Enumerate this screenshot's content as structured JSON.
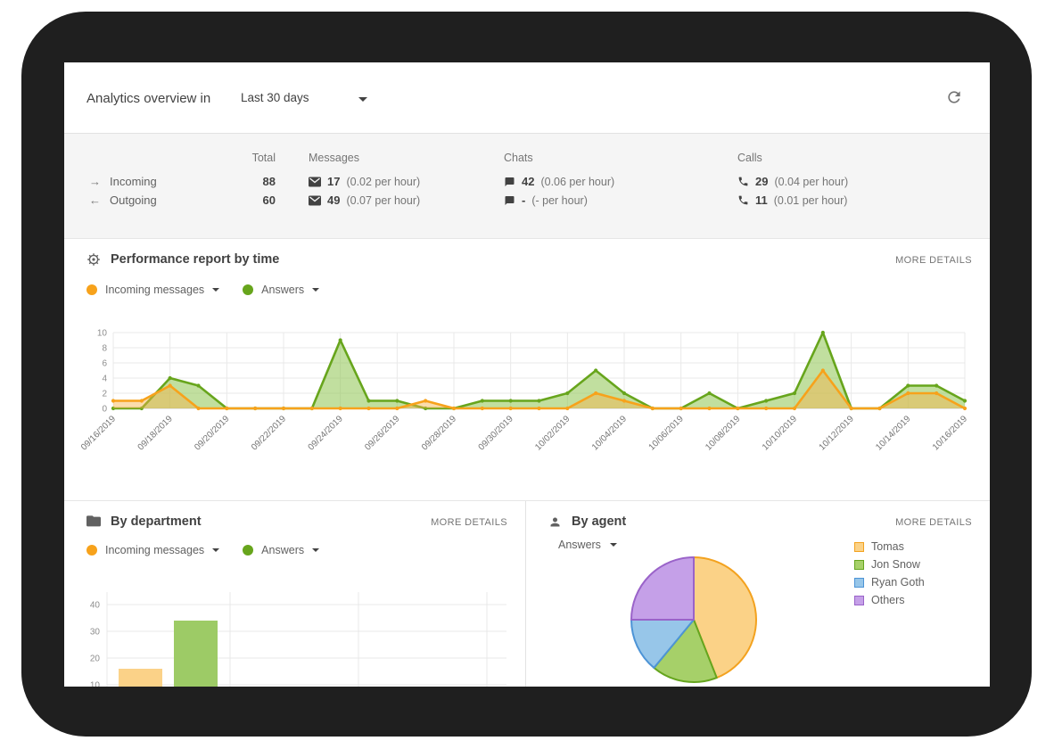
{
  "header": {
    "title": "Analytics overview in",
    "period_selector": {
      "value": "Last 30 days"
    },
    "refresh_icon": "refresh-icon"
  },
  "stats": {
    "columns": {
      "total": "Total",
      "messages": "Messages",
      "chats": "Chats",
      "calls": "Calls"
    },
    "rows": [
      {
        "arrow": "→",
        "label": "Incoming",
        "total": "88",
        "messages": {
          "icon": "envelope-icon",
          "value": "17",
          "rate": "(0.02 per hour)"
        },
        "chats": {
          "icon": "chat-bubble-icon",
          "value": "42",
          "rate": "(0.06 per hour)"
        },
        "calls": {
          "icon": "phone-icon",
          "value": "29",
          "rate": "(0.04 per hour)"
        }
      },
      {
        "arrow": "←",
        "label": "Outgoing",
        "total": "60",
        "messages": {
          "icon": "envelope-icon",
          "value": "49",
          "rate": "(0.07 per hour)"
        },
        "chats": {
          "icon": "chat-bubble-icon",
          "value": "-",
          "rate": "(- per hour)"
        },
        "calls": {
          "icon": "phone-icon",
          "value": "11",
          "rate": "(0.01 per hour)"
        }
      }
    ]
  },
  "performance": {
    "icon": "gear-icon",
    "title": "Performance report by time",
    "more_details": "MORE DETAILS",
    "legend": [
      {
        "label": "Incoming messages",
        "color": "#F7A21B"
      },
      {
        "label": "Answers",
        "color": "#67A51C"
      }
    ]
  },
  "by_department": {
    "icon": "folder-icon",
    "title": "By department",
    "more_details": "MORE DETAILS",
    "legend": [
      {
        "label": "Incoming messages",
        "color": "#F7A21B"
      },
      {
        "label": "Answers",
        "color": "#67A51C"
      }
    ]
  },
  "by_agent": {
    "icon": "person-icon",
    "title": "By agent",
    "more_details": "MORE DETAILS",
    "selector": {
      "value": "Answers"
    },
    "legend": [
      {
        "label": "Tomas",
        "fill": "#FBD287",
        "stroke": "#F3A21F"
      },
      {
        "label": "Jon Snow",
        "fill": "#A6D069",
        "stroke": "#65A51E"
      },
      {
        "label": "Ryan Goth",
        "fill": "#97C6E9",
        "stroke": "#4D94D6"
      },
      {
        "label": "Others",
        "fill": "#C5A0E8",
        "stroke": "#9A63C9"
      }
    ]
  },
  "chart_data": [
    {
      "id": "performance_by_time",
      "type": "area",
      "x": [
        "09/16/2019",
        "09/17/2019",
        "09/18/2019",
        "09/19/2019",
        "09/20/2019",
        "09/21/2019",
        "09/22/2019",
        "09/23/2019",
        "09/24/2019",
        "09/25/2019",
        "09/26/2019",
        "09/27/2019",
        "09/28/2019",
        "09/29/2019",
        "09/30/2019",
        "10/01/2019",
        "10/02/2019",
        "10/03/2019",
        "10/04/2019",
        "10/05/2019",
        "10/06/2019",
        "10/07/2019",
        "10/08/2019",
        "10/09/2019",
        "10/10/2019",
        "10/11/2019",
        "10/12/2019",
        "10/13/2019",
        "10/14/2019",
        "10/15/2019",
        "10/16/2019"
      ],
      "tick_every": 2,
      "series": [
        {
          "name": "Incoming messages",
          "color": "#F7A21B",
          "fill": "rgba(247,178,70,0.45)",
          "values": [
            1,
            1,
            3,
            0,
            0,
            0,
            0,
            0,
            0,
            0,
            0,
            1,
            0,
            0,
            0,
            0,
            0,
            2,
            1,
            0,
            0,
            0,
            0,
            0,
            0,
            5,
            0,
            0,
            2,
            2,
            0
          ]
        },
        {
          "name": "Answers",
          "color": "#67A51C",
          "fill": "rgba(142,197,80,0.55)",
          "values": [
            0,
            0,
            4,
            3,
            0,
            0,
            0,
            0,
            9,
            1,
            1,
            0,
            0,
            1,
            1,
            1,
            2,
            5,
            2,
            0,
            0,
            2,
            0,
            1,
            2,
            10,
            0,
            0,
            3,
            3,
            1
          ]
        }
      ],
      "ylim": [
        0,
        10
      ],
      "yticks": [
        0,
        2,
        4,
        6,
        8,
        10
      ],
      "grid": true,
      "legend_position": "top-left"
    },
    {
      "id": "by_department",
      "type": "bar",
      "categories": [
        ""
      ],
      "series": [
        {
          "name": "Incoming messages",
          "color": "#FBD288",
          "values": [
            16
          ]
        },
        {
          "name": "Answers",
          "color": "#9DCB66",
          "values": [
            34
          ]
        }
      ],
      "ylim": [
        0,
        40
      ],
      "yticks_visible": [
        40,
        30,
        20,
        10
      ],
      "note": "bottom of chart clipped by viewport"
    },
    {
      "id": "by_agent",
      "type": "pie",
      "labels": [
        "Tomas",
        "Jon Snow",
        "Ryan Goth",
        "Others"
      ],
      "values_percent": [
        44,
        17,
        14,
        25
      ],
      "fills": [
        "#FBD287",
        "#A6D069",
        "#97C6E9",
        "#C5A0E8"
      ],
      "strokes": [
        "#F3A21F",
        "#65A51E",
        "#4D94D6",
        "#9A63C9"
      ]
    }
  ]
}
